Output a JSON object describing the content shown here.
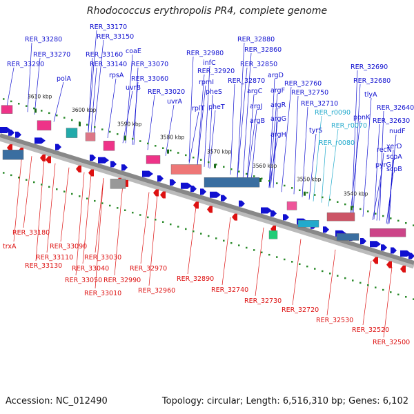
{
  "title": "Rhodococcus erythropolis PR4, complete genome",
  "footer": {
    "accession": "Accession: NC_012490",
    "info": "Topology: circular; Length: 6,516,310 bp; Genes: 6,102"
  },
  "colors": {
    "forward": "#1010d0",
    "reverse": "#dd1111",
    "rna": "#22aacc",
    "backbone": "#888888"
  },
  "ticks": [
    "3610 kbp",
    "3600 kbp",
    "3590 kbp",
    "3580 kbp",
    "3570 kbp",
    "3560 kbp",
    "3550 kbp",
    "3540 kbp"
  ],
  "top_labels": [
    "RER_33280",
    "RER_33270",
    "RER_33290",
    "RER_33170",
    "RER_33150",
    "RER_33160",
    "RER_33140",
    "coaE",
    "rpsA",
    "uvrB",
    "RER_33070",
    "RER_33060",
    "RER_33020",
    "uvrA",
    "polA",
    "RER_32980",
    "infC",
    "RER_32920",
    "rpmI",
    "rplT",
    "pheS",
    "pheT",
    "RER_32880",
    "RER_32860",
    "RER_32850",
    "RER_32870",
    "argD",
    "argC",
    "argF",
    "argJ",
    "argR",
    "argB",
    "argG",
    "argH",
    "RER_32760",
    "RER_32750",
    "RER_32710",
    "tyrS",
    "RER_r0090",
    "RER_r0070",
    "RER_r0080",
    "RER_32690",
    "RER_32680",
    "tlyA",
    "ppnK",
    "RER_32640",
    "RER_32630",
    "recN",
    "nudF",
    "pyrG",
    "xerD",
    "scpA",
    "scpB"
  ],
  "bottom_labels": [
    "RER_33180",
    "trxA",
    "RER_33130",
    "RER_33110",
    "RER_33090",
    "RER_33050",
    "RER_33040",
    "RER_33030",
    "RER_33010",
    "RER_32990",
    "RER_32970",
    "RER_32960",
    "RER_32890",
    "RER_32740",
    "RER_32730",
    "RER_32720",
    "RER_32530",
    "RER_32520",
    "RER_32500"
  ]
}
